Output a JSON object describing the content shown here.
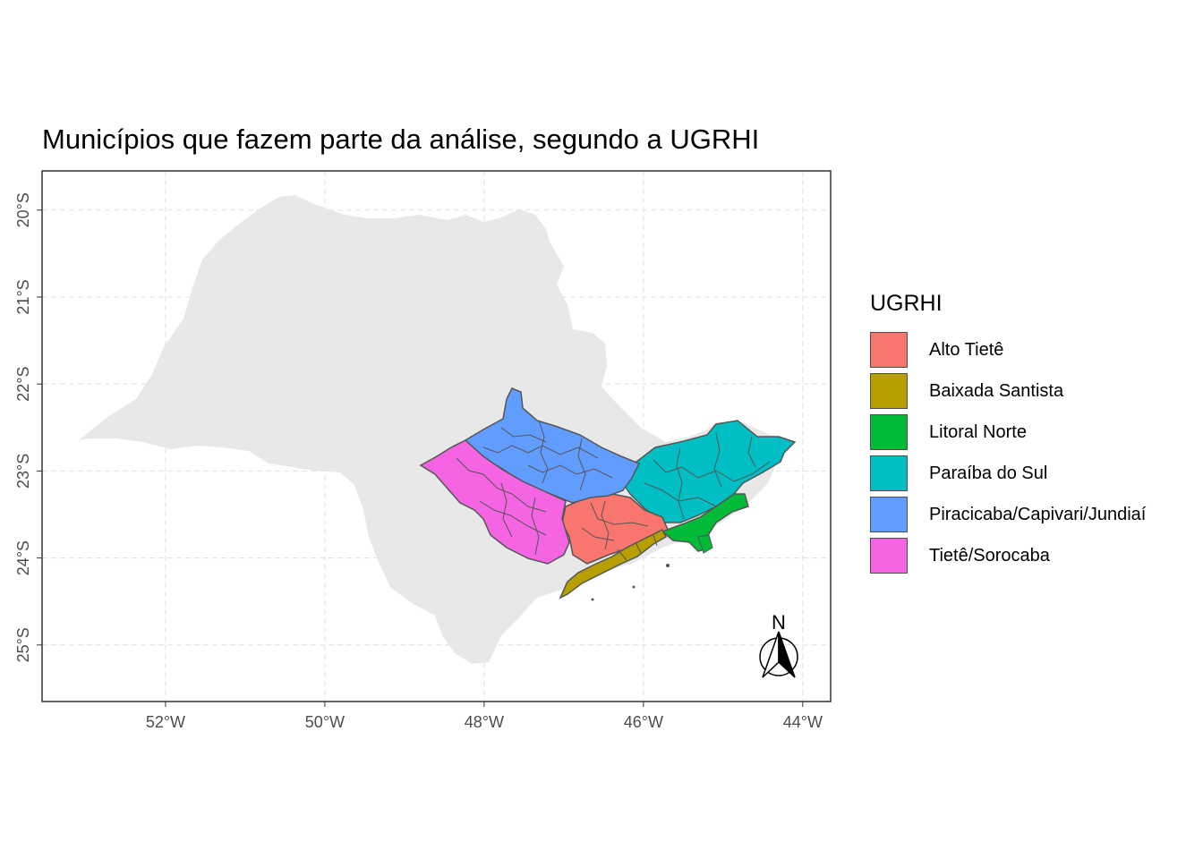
{
  "title": "Municípios que fazem parte da análise, segundo a UGRHI",
  "chart_data": {
    "type": "map",
    "title": "Municípios que fazem parte da análise, segundo a UGRHI",
    "xlim": [
      -53.55,
      -43.65
    ],
    "ylim": [
      -25.65,
      -19.55
    ],
    "x_ticks": [
      -52,
      -50,
      -48,
      -46,
      -44
    ],
    "x_tick_labels": [
      "52°W",
      "50°W",
      "48°W",
      "46°W",
      "44°W"
    ],
    "y_ticks": [
      -20,
      -21,
      -22,
      -23,
      -24,
      -25
    ],
    "y_tick_labels": [
      "20°S",
      "21°S",
      "22°S",
      "23°S",
      "24°S",
      "25°S"
    ],
    "grid": true,
    "legend_position": "right",
    "legend_title": "UGRHI",
    "background_region_color": "#e8e8e8",
    "border_color": "#555555",
    "categories": [
      {
        "name": "Alto Tietê",
        "color": "#F8766D"
      },
      {
        "name": "Baixada Santista",
        "color": "#B79F00"
      },
      {
        "name": "Litoral Norte",
        "color": "#00BA38"
      },
      {
        "name": "Paraíba do Sul",
        "color": "#00BFC4"
      },
      {
        "name": "Piracicaba/Capivari/Jundiaí",
        "color": "#619CFF"
      },
      {
        "name": "Tietê/Sorocaba",
        "color": "#F564E3"
      }
    ],
    "north_arrow_label": "N"
  }
}
